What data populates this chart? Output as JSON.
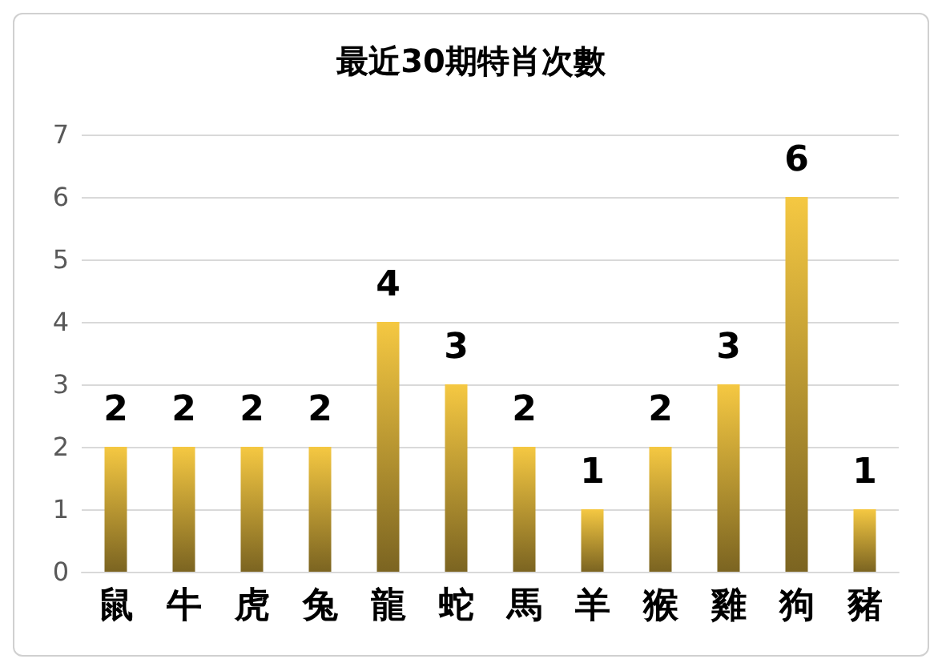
{
  "chart_data": {
    "type": "bar",
    "title": "最近30期特肖次數",
    "categories": [
      "鼠",
      "牛",
      "虎",
      "兔",
      "龍",
      "蛇",
      "馬",
      "羊",
      "猴",
      "雞",
      "狗",
      "豬"
    ],
    "values": [
      2,
      2,
      2,
      2,
      4,
      3,
      2,
      1,
      2,
      3,
      6,
      1
    ],
    "color": "#f5c842",
    "ylim": [
      0,
      7
    ],
    "yticks": [
      0,
      1,
      2,
      3,
      4,
      5,
      6,
      7
    ],
    "grid": "y",
    "data_labels": true
  }
}
